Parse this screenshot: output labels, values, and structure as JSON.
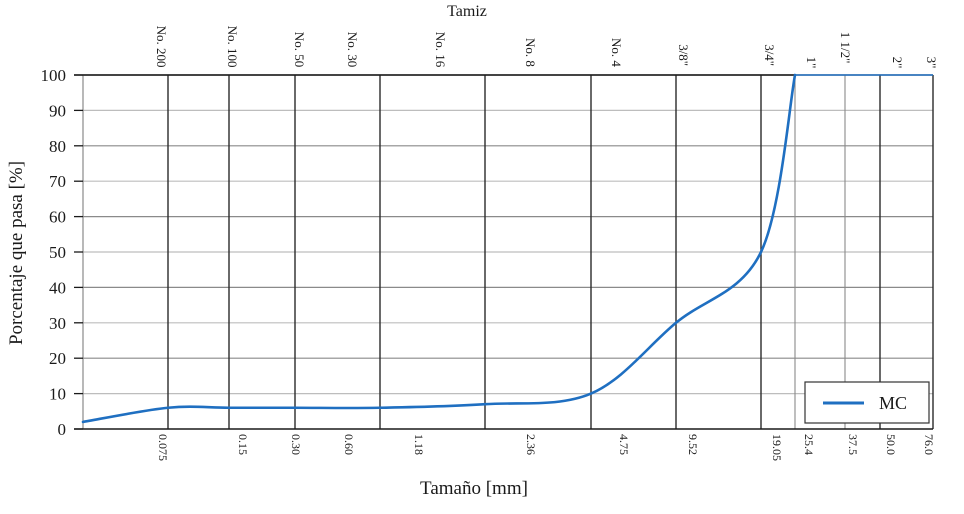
{
  "chart_data": {
    "type": "line",
    "title": "",
    "top_axis_title": "Tamiz",
    "xlabel": "Tamaño [mm]",
    "ylabel": "Porcentaje que pasa [%]",
    "ylim": [
      0,
      100
    ],
    "yticks": [
      0,
      10,
      20,
      30,
      40,
      50,
      60,
      70,
      80,
      90,
      100
    ],
    "x_scale": "sieve (log-like)",
    "grid": true,
    "legend_position": "lower right",
    "sieves": [
      {
        "name": "No. 200",
        "size_mm": "0.075"
      },
      {
        "name": "No. 100",
        "size_mm": "0.15"
      },
      {
        "name": "No. 50",
        "size_mm": "0.30"
      },
      {
        "name": "No. 30",
        "size_mm": "0.60"
      },
      {
        "name": "No. 16",
        "size_mm": "1.18"
      },
      {
        "name": "No. 8",
        "size_mm": "2.36"
      },
      {
        "name": "No. 4",
        "size_mm": "4.75"
      },
      {
        "name": "3/8\"",
        "size_mm": "9.52"
      },
      {
        "name": "3/4\"",
        "size_mm": "19.05"
      },
      {
        "name": "1\"",
        "size_mm": "25.4"
      },
      {
        "name": "1 1/2\"",
        "size_mm": "37.5"
      },
      {
        "name": "2\"",
        "size_mm": "50.0"
      },
      {
        "name": "3\"",
        "size_mm": "76.0"
      }
    ],
    "series": [
      {
        "name": "MC",
        "color": "#1f6fc1",
        "x": [
          "<0.075",
          "0.075",
          "0.15",
          "0.30",
          "0.60",
          "1.18",
          "2.36",
          "4.75",
          "9.52",
          "19.05",
          "25.4",
          "37.5",
          "50.0",
          "76.0"
        ],
        "values": [
          2,
          6,
          6,
          6,
          6,
          7,
          10,
          30,
          50,
          100,
          100,
          100,
          100,
          100
        ]
      }
    ]
  },
  "colors": {
    "curve": "#1f6fc1",
    "grid_major": "#2b2b2b",
    "grid_minor": "#bdbdbd",
    "axis": "#1a1a1a"
  }
}
